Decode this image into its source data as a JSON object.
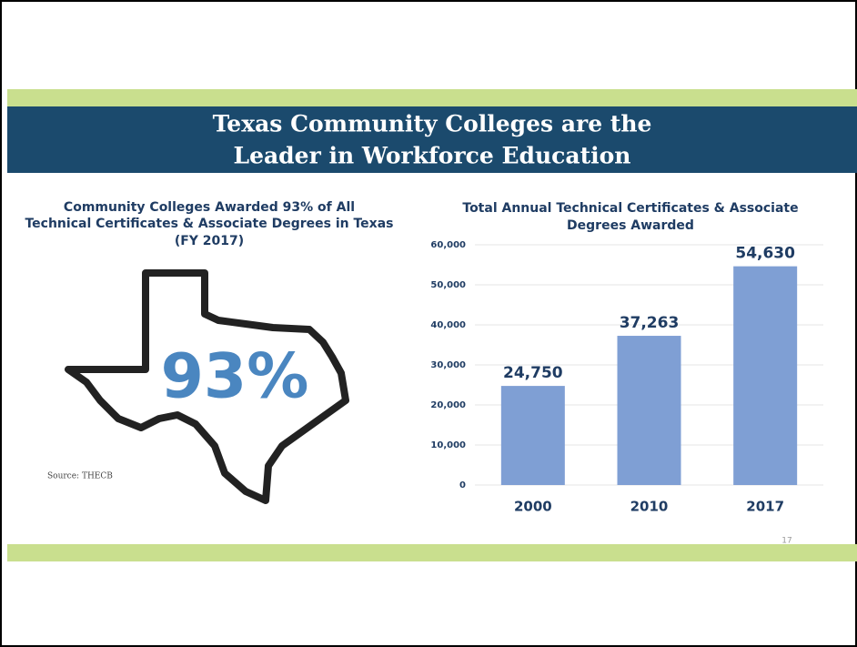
{
  "header": {
    "title": [
      "Texas Community Colleges are the",
      "Leader in Workforce Education"
    ]
  },
  "left": {
    "title": [
      "Community Colleges Awarded 93% of All",
      "Technical Certificates & Associate Degrees in Texas",
      "(FY 2017)"
    ],
    "highlight": "93%",
    "source": "Source: THECB"
  },
  "page_number": "17",
  "chart_data": {
    "type": "bar",
    "title": [
      "Total Annual Technical Certificates & Associate",
      "Degrees Awarded"
    ],
    "categories": [
      "2000",
      "2010",
      "2017"
    ],
    "values": [
      24750,
      37263,
      54630
    ],
    "value_labels": [
      "24,750",
      "37,263",
      "54,630"
    ],
    "color": "#7f9fd4",
    "ylim": [
      0,
      60000
    ],
    "yticks": [
      0,
      {
        "value": 10000,
        "label": "10,000"
      },
      {
        "value": 20000,
        "label": "20,000"
      },
      {
        "value": 30000,
        "label": "30,000"
      },
      {
        "value": 40000,
        "label": "40,000"
      },
      {
        "value": 50000,
        "label": "50,000"
      },
      {
        "value": 60000,
        "label": "60,000"
      }
    ],
    "grid": true
  }
}
